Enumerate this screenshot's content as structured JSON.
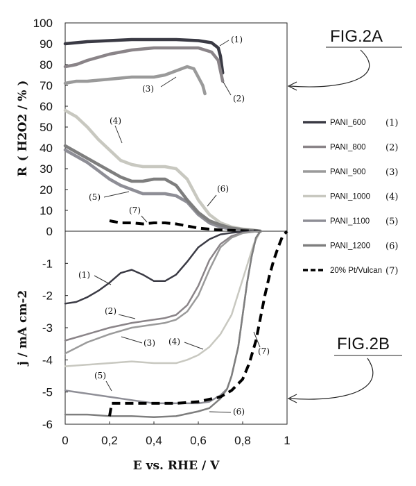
{
  "chart_data": [
    {
      "id": "fig2a",
      "type": "line",
      "figure_label": "FIG.2A",
      "ylabel_main": "R",
      "ylabel_paren": "( H2O2 / % )",
      "ylim": [
        0,
        100
      ],
      "xlim": [
        0,
        1
      ],
      "yticks": [
        "0",
        "10",
        "20",
        "30",
        "40",
        "50",
        "60",
        "70",
        "80",
        "90",
        "100"
      ],
      "series": [
        {
          "name": "PANI_600",
          "num": "(1)",
          "color": "#3a3a44",
          "width": 4.5,
          "dashed": false,
          "x": [
            0,
            0.05,
            0.1,
            0.2,
            0.3,
            0.4,
            0.5,
            0.6,
            0.66,
            0.69,
            0.7,
            0.71
          ],
          "y": [
            90,
            90.5,
            91,
            91.5,
            92,
            92,
            92,
            91.5,
            90.5,
            88,
            84,
            76
          ]
        },
        {
          "name": "PANI_800",
          "num": "(2)",
          "color": "#8a8488",
          "width": 4.5,
          "dashed": false,
          "x": [
            0,
            0.05,
            0.1,
            0.2,
            0.3,
            0.4,
            0.5,
            0.6,
            0.66,
            0.69,
            0.71
          ],
          "y": [
            79,
            80,
            82,
            85,
            87,
            88,
            88,
            88,
            86,
            82,
            72
          ]
        },
        {
          "name": "PANI_900",
          "num": "(3)",
          "color": "#9a9a9a",
          "width": 4.5,
          "dashed": false,
          "x": [
            0,
            0.05,
            0.1,
            0.2,
            0.3,
            0.4,
            0.45,
            0.5,
            0.55,
            0.58,
            0.6,
            0.62,
            0.63
          ],
          "y": [
            71,
            72,
            72,
            73,
            74,
            74,
            75,
            77,
            79,
            78,
            74,
            70,
            66
          ]
        },
        {
          "name": "PANI_1000",
          "num": "(4)",
          "color": "#c8c8c0",
          "width": 4.5,
          "dashed": false,
          "x": [
            0,
            0.05,
            0.1,
            0.15,
            0.2,
            0.25,
            0.3,
            0.35,
            0.4,
            0.45,
            0.5,
            0.55,
            0.6,
            0.65,
            0.7,
            0.75,
            0.8,
            0.85,
            0.88
          ],
          "y": [
            58,
            55,
            50,
            44,
            39,
            34,
            32,
            31,
            31,
            31,
            30,
            25,
            15,
            8,
            4,
            2,
            1,
            0.5,
            0
          ]
        },
        {
          "name": "PANI_1100",
          "num": "(5)",
          "color": "#8e8e96",
          "width": 4.5,
          "dashed": false,
          "x": [
            0,
            0.05,
            0.1,
            0.15,
            0.2,
            0.25,
            0.3,
            0.35,
            0.4,
            0.45,
            0.5,
            0.55,
            0.6,
            0.65,
            0.7,
            0.75,
            0.8,
            0.85,
            0.88
          ],
          "y": [
            39,
            36,
            33,
            29,
            25,
            22,
            20,
            18,
            18,
            18,
            17,
            14,
            8,
            4,
            2,
            1,
            0.5,
            0.3,
            0
          ]
        },
        {
          "name": "PANI_1200",
          "num": "(6)",
          "color": "#7e7e7e",
          "width": 4.5,
          "dashed": false,
          "x": [
            0,
            0.05,
            0.1,
            0.15,
            0.2,
            0.25,
            0.3,
            0.35,
            0.4,
            0.45,
            0.5,
            0.55,
            0.6,
            0.65,
            0.7,
            0.75,
            0.8,
            0.85,
            0.88
          ],
          "y": [
            41,
            38,
            35,
            32,
            29,
            26,
            24,
            24,
            25,
            25,
            22,
            15,
            9,
            5,
            3,
            1.5,
            0.8,
            0.3,
            0
          ]
        },
        {
          "name": "20% Pt/Vulcan",
          "num": "(7)",
          "color": "#000000",
          "width": 4,
          "dashed": true,
          "x": [
            0.2,
            0.25,
            0.3,
            0.35,
            0.4,
            0.45,
            0.5,
            0.55,
            0.6,
            0.65,
            0.7,
            0.75,
            0.8,
            0.85,
            0.88
          ],
          "y": [
            5,
            4,
            4,
            3.5,
            4,
            4,
            3.5,
            2.5,
            1.5,
            1,
            0.6,
            0.4,
            0.2,
            0.1,
            0
          ]
        }
      ]
    },
    {
      "id": "fig2b",
      "type": "line",
      "figure_label": "FIG.2B",
      "ylabel": "j / mA cm-2",
      "xlabel": "E vs. RHE / V",
      "ylim": [
        -6,
        0
      ],
      "xlim": [
        0,
        1
      ],
      "yticks": [
        "0",
        "-1",
        "-2",
        "-3",
        "-4",
        "-5",
        "-6"
      ],
      "xticks": [
        "0",
        "0,2",
        "0,4",
        "0,6",
        "0,8",
        "1"
      ],
      "series": [
        {
          "name": "PANI_600",
          "num": "(1)",
          "color": "#3a3a44",
          "width": 2.5,
          "dashed": false,
          "x": [
            0,
            0.05,
            0.1,
            0.15,
            0.2,
            0.25,
            0.3,
            0.35,
            0.4,
            0.45,
            0.5,
            0.55,
            0.6,
            0.65,
            0.7,
            0.75,
            0.8,
            0.85,
            0.88
          ],
          "y": [
            -2.25,
            -2.2,
            -2.05,
            -1.85,
            -1.6,
            -1.3,
            -1.2,
            -1.35,
            -1.55,
            -1.55,
            -1.35,
            -0.95,
            -0.5,
            -0.25,
            -0.1,
            -0.05,
            -0.02,
            0,
            0
          ]
        },
        {
          "name": "PANI_800",
          "num": "(2)",
          "color": "#8a8488",
          "width": 2.5,
          "dashed": false,
          "x": [
            0,
            0.1,
            0.2,
            0.3,
            0.4,
            0.45,
            0.5,
            0.55,
            0.6,
            0.65,
            0.7,
            0.75,
            0.8,
            0.85,
            0.88
          ],
          "y": [
            -3.4,
            -3.2,
            -3.0,
            -2.85,
            -2.75,
            -2.7,
            -2.6,
            -2.3,
            -1.7,
            -0.9,
            -0.4,
            -0.15,
            -0.05,
            -0.02,
            0
          ]
        },
        {
          "name": "PANI_900",
          "num": "(3)",
          "color": "#9a9a9a",
          "width": 2.5,
          "dashed": false,
          "x": [
            0,
            0.1,
            0.2,
            0.3,
            0.4,
            0.45,
            0.5,
            0.55,
            0.6,
            0.65,
            0.7,
            0.75,
            0.8,
            0.85,
            0.88
          ],
          "y": [
            -3.8,
            -3.45,
            -3.2,
            -3.0,
            -2.9,
            -2.85,
            -2.75,
            -2.5,
            -2.0,
            -1.2,
            -0.5,
            -0.2,
            -0.06,
            -0.02,
            0
          ]
        },
        {
          "name": "PANI_1000",
          "num": "(4)",
          "color": "#c8c8c0",
          "width": 2.5,
          "dashed": false,
          "x": [
            0,
            0.1,
            0.2,
            0.3,
            0.4,
            0.5,
            0.55,
            0.6,
            0.65,
            0.7,
            0.75,
            0.8,
            0.85,
            0.88
          ],
          "y": [
            -4.2,
            -4.15,
            -4.1,
            -4.05,
            -4.1,
            -4.1,
            -4.0,
            -3.85,
            -3.6,
            -3.2,
            -2.6,
            -1.5,
            -0.4,
            0
          ]
        },
        {
          "name": "PANI_1100",
          "num": "(5)",
          "color": "#8e8e96",
          "width": 2.5,
          "dashed": false,
          "x": [
            0,
            0.1,
            0.2,
            0.3,
            0.4,
            0.5,
            0.6,
            0.65,
            0.7,
            0.73,
            0.75,
            0.78,
            0.8,
            0.82,
            0.84,
            0.86,
            0.88
          ],
          "y": [
            -4.95,
            -5.05,
            -5.15,
            -5.25,
            -5.35,
            -5.35,
            -5.35,
            -5.3,
            -5.1,
            -4.9,
            -4.5,
            -3.6,
            -2.6,
            -1.6,
            -0.8,
            -0.2,
            0
          ]
        },
        {
          "name": "PANI_1200",
          "num": "(6)",
          "color": "#7e7e7e",
          "width": 2.5,
          "dashed": false,
          "x": [
            0,
            0.1,
            0.2,
            0.3,
            0.4,
            0.5,
            0.6,
            0.65,
            0.7,
            0.73,
            0.75,
            0.78,
            0.8,
            0.82,
            0.84,
            0.86,
            0.88
          ],
          "y": [
            -5.7,
            -5.7,
            -5.75,
            -5.75,
            -5.78,
            -5.75,
            -5.6,
            -5.5,
            -5.2,
            -4.9,
            -4.5,
            -3.6,
            -2.6,
            -1.6,
            -0.8,
            -0.2,
            0
          ]
        },
        {
          "name": "20% Pt/Vulcan",
          "num": "(7)",
          "color": "#000000",
          "width": 4,
          "dashed": true,
          "x": [
            0.2,
            0.21,
            0.25,
            0.3,
            0.4,
            0.5,
            0.6,
            0.7,
            0.75,
            0.8,
            0.83,
            0.86,
            0.88,
            0.9,
            0.92,
            0.94,
            0.96,
            0.98,
            1.0
          ],
          "y": [
            -5.75,
            -5.35,
            -5.35,
            -5.35,
            -5.35,
            -5.35,
            -5.3,
            -5.15,
            -4.95,
            -4.6,
            -4.1,
            -3.4,
            -2.7,
            -2.0,
            -1.4,
            -0.9,
            -0.5,
            -0.15,
            0
          ]
        }
      ]
    }
  ],
  "annotations_a": [
    "(1)",
    "(2)",
    "(3)",
    "(4)",
    "(5)",
    "(6)",
    "(7)"
  ],
  "annotations_b": [
    "(1)",
    "(2)",
    "(3)",
    "(4)",
    "(5)",
    "(6)",
    "(7)"
  ]
}
